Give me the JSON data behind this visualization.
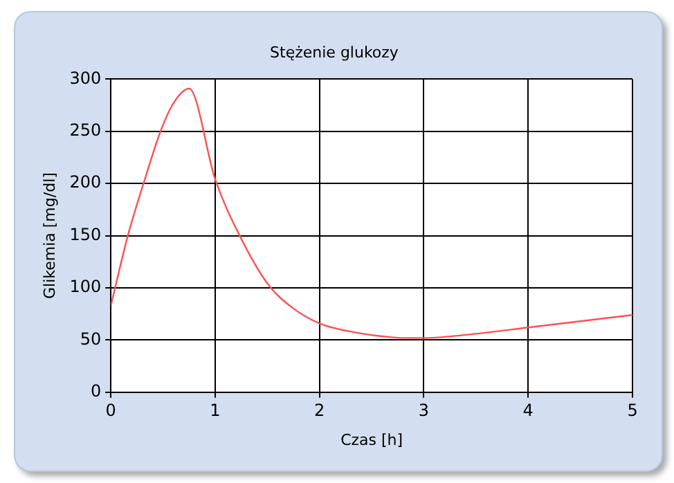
{
  "chart_data": {
    "type": "line",
    "title": "Stężenie glukozy",
    "xlabel": "Czas [h]",
    "ylabel": "Glikemia [mg/dl]",
    "xlim": [
      0,
      5
    ],
    "ylim": [
      0,
      300
    ],
    "xticks": [
      0,
      1,
      2,
      3,
      4,
      5
    ],
    "yticks": [
      0,
      50,
      100,
      150,
      200,
      250,
      300
    ],
    "grid": true,
    "legend": false,
    "marker": "none",
    "line_style": "solid",
    "series": [
      {
        "color": "#ff5050",
        "x": [
          0,
          0.16,
          0.31,
          0.48,
          0.6,
          0.75,
          1,
          1.24,
          1.51,
          1.74,
          2,
          2.36,
          2.66,
          2.82,
          3,
          3.5,
          4,
          5
        ],
        "values": [
          83,
          149,
          199,
          251,
          277,
          291,
          204,
          149,
          103,
          81,
          66,
          57,
          53,
          52,
          52,
          56,
          62,
          74
        ]
      }
    ]
  }
}
